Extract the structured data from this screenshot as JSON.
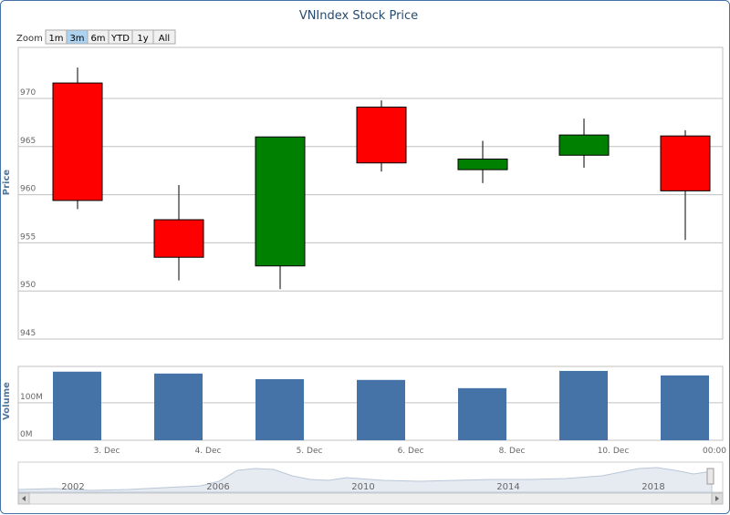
{
  "chart_data": {
    "type": "candlestick",
    "title": "VNIndex Stock Price",
    "zoom": {
      "label": "Zoom",
      "buttons": [
        "1m",
        "3m",
        "6m",
        "YTD",
        "1y",
        "All"
      ],
      "selected": 1
    },
    "categories": [
      null,
      null,
      null,
      null,
      null,
      null,
      null
    ],
    "open": [
      971.6,
      957.4,
      952.6,
      969.1,
      962.6,
      964.1,
      966.1
    ],
    "high": [
      973.2,
      961.0,
      966.0,
      969.8,
      965.6,
      967.9,
      966.7
    ],
    "low": [
      958.5,
      951.1,
      950.2,
      962.4,
      961.2,
      962.8,
      955.3
    ],
    "close": [
      959.4,
      953.5,
      966.0,
      963.3,
      963.7,
      966.2,
      960.4
    ],
    "up_color": "#008000",
    "down_color": "#ff0000",
    "y_label": "Price",
    "ylim": [
      945,
      975.3
    ],
    "yticks": [
      945,
      950,
      955,
      960,
      965,
      970
    ],
    "grid": true,
    "volume": {
      "y_label": "Volume",
      "values": [
        183,
        178,
        163,
        161,
        139,
        185,
        173
      ],
      "color": "#4572a7",
      "ylim": [
        0,
        197
      ],
      "yticks": [
        {
          "value": 0,
          "label": "0M"
        },
        {
          "value": 100,
          "label": "100M"
        }
      ]
    },
    "x_labels": [
      "3. Dec",
      "4. Dec",
      "5. Dec",
      "6. Dec",
      "8. Dec",
      "10. Dec",
      "00:00"
    ],
    "navigator_labels": [
      "2002",
      "2006",
      "2010",
      "2014",
      "2018"
    ]
  }
}
